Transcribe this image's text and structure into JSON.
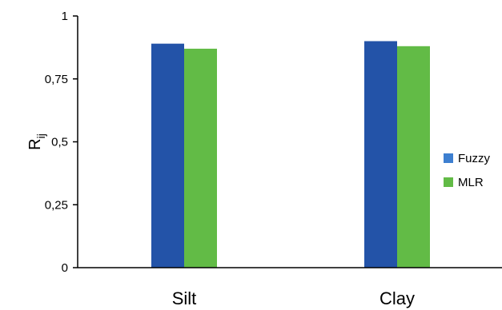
{
  "chart_data": {
    "type": "bar",
    "title": "",
    "xlabel": "",
    "ylabel": "R",
    "ylabel_sub": "ij",
    "categories": [
      "Silt",
      "Clay"
    ],
    "series": [
      {
        "name": "Fuzzy",
        "values": [
          0.89,
          0.9
        ],
        "color": "#2353a8"
      },
      {
        "name": "MLR",
        "values": [
          0.87,
          0.88
        ],
        "color": "#62bb46"
      }
    ],
    "ylim": [
      0,
      1
    ],
    "yticks": [
      0,
      0.25,
      0.5,
      0.75,
      1
    ],
    "ytick_labels": [
      "0",
      "0,25",
      "0,5",
      "0,75",
      "1"
    ],
    "legend_swatch_colors": [
      "#3d7fd0",
      "#62bb46"
    ],
    "grid": false,
    "legend_position": "right"
  }
}
